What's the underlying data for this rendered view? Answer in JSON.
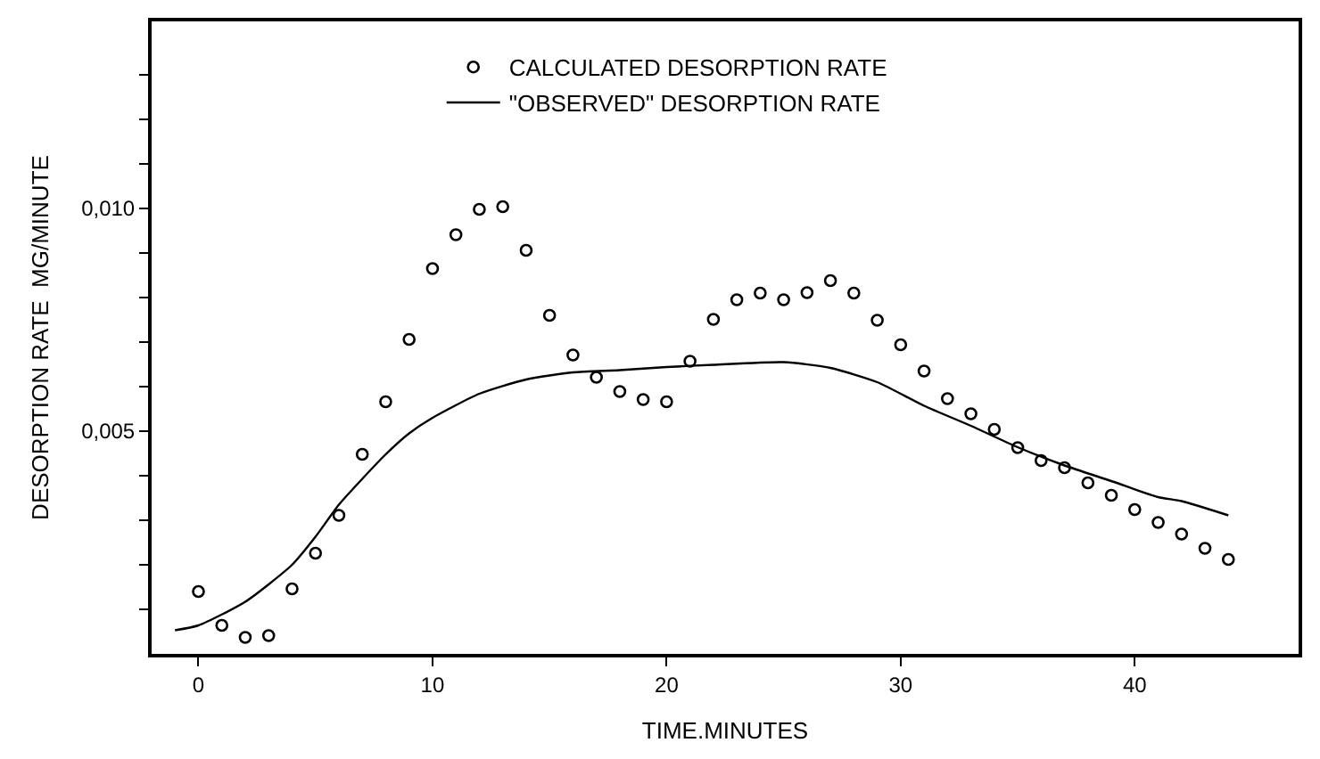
{
  "chart_data": {
    "type": "scatter",
    "xlabel": "TIME.MINUTES",
    "ylabel": "DESORPTION RATE  MG/MINUTE",
    "xlim": [
      -2,
      47
    ],
    "xticks": [
      0,
      10,
      20,
      30,
      40
    ],
    "ylim": [
      0,
      0.0142
    ],
    "yticks": [
      {
        "value": 0.001,
        "label": null
      },
      {
        "value": 0.002,
        "label": null
      },
      {
        "value": 0.003,
        "label": null
      },
      {
        "value": 0.004,
        "label": null
      },
      {
        "value": 0.005,
        "label": "0,005"
      },
      {
        "value": 0.006,
        "label": null
      },
      {
        "value": 0.007,
        "label": null
      },
      {
        "value": 0.008,
        "label": null
      },
      {
        "value": 0.009,
        "label": null
      },
      {
        "value": 0.01,
        "label": "0,010"
      },
      {
        "value": 0.011,
        "label": null
      },
      {
        "value": 0.012,
        "label": null
      },
      {
        "value": 0.013,
        "label": null
      }
    ],
    "legend": "top",
    "series": [
      {
        "name": "CALCULATED DESORPTION RATE",
        "marker": "circle",
        "color": "#000000",
        "x": [
          0,
          1,
          2,
          3,
          4,
          5,
          6,
          7,
          8,
          9,
          10,
          11,
          12,
          13,
          14,
          15,
          16,
          17,
          18,
          19,
          20,
          21,
          22,
          23,
          24,
          25,
          26,
          27,
          28,
          29,
          30,
          31,
          32,
          33,
          34,
          35,
          36,
          37,
          38,
          39,
          40,
          41,
          42,
          43,
          44
        ],
        "values": [
          0.0014,
          0.00064,
          0.00037,
          0.00041,
          0.00146,
          0.00226,
          0.00311,
          0.00448,
          0.00566,
          0.00706,
          0.00865,
          0.00941,
          0.00998,
          0.01004,
          0.00906,
          0.0076,
          0.00671,
          0.00621,
          0.00589,
          0.00571,
          0.00566,
          0.00657,
          0.00751,
          0.00795,
          0.0081,
          0.00795,
          0.00811,
          0.00838,
          0.0081,
          0.00749,
          0.00694,
          0.00635,
          0.00573,
          0.00539,
          0.00504,
          0.00463,
          0.00434,
          0.00418,
          0.00384,
          0.00356,
          0.00324,
          0.00295,
          0.00269,
          0.00237,
          0.00212
        ]
      },
      {
        "name": "\"OBSERVED\" DESORPTION RATE",
        "type": "line",
        "marker": "none",
        "line_style": "solid",
        "color": "#000000",
        "x": [
          -1,
          0,
          2,
          4,
          5,
          6,
          7,
          8,
          9,
          10,
          12,
          14,
          16,
          18,
          20,
          22,
          25,
          27,
          29,
          31,
          33,
          35,
          37,
          39,
          41,
          42,
          44
        ],
        "values": [
          0.00053,
          0.00064,
          0.00117,
          0.002,
          0.00263,
          0.00335,
          0.00393,
          0.00448,
          0.00495,
          0.0053,
          0.00584,
          0.00616,
          0.00632,
          0.00637,
          0.00644,
          0.00649,
          0.00655,
          0.00642,
          0.0061,
          0.00557,
          0.00512,
          0.00464,
          0.00423,
          0.00388,
          0.00352,
          0.00343,
          0.00311
        ]
      }
    ]
  }
}
